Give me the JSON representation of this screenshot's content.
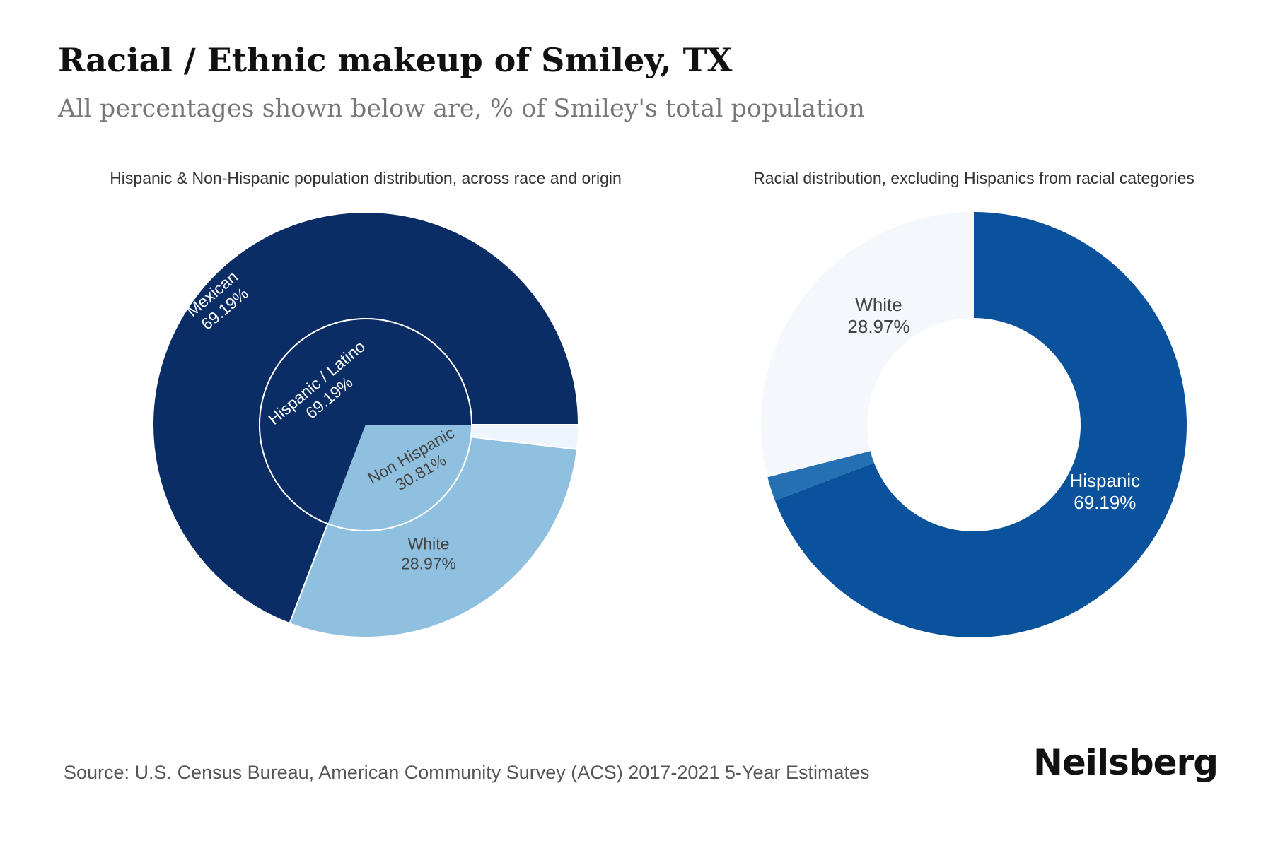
{
  "header": {
    "title": "Racial / Ethnic makeup of Smiley, TX",
    "subtitle": "All percentages shown below are, % of Smiley's total population"
  },
  "footer": {
    "source": "Source: U.S. Census Bureau, American Community Survey (ACS) 2017-2021 5-Year Estimates",
    "brand": "Neilsberg"
  },
  "colors": {
    "navy": "#0a2d66",
    "light_blue": "#8fc0df",
    "pale": "#eef5fc",
    "royal": "#0b529c",
    "mid_blue": "#2470b3",
    "very_pale": "#f4f8fd"
  },
  "chart_data": [
    {
      "type": "pie",
      "title": "Hispanic & Non-Hispanic population distribution, across race and origin",
      "inner": [
        {
          "label": "Hispanic / Latino",
          "value": 69.19,
          "value_label": "69.19%"
        },
        {
          "label": "Non Hispanic",
          "value": 30.81,
          "value_label": "30.81%"
        }
      ],
      "outer": [
        {
          "label": "Mexican",
          "value": 69.19,
          "value_label": "69.19%"
        },
        {
          "label": "White",
          "value": 28.97,
          "value_label": "28.97%"
        },
        {
          "label": "",
          "value": 1.84,
          "value_label": ""
        }
      ]
    },
    {
      "type": "pie",
      "title": "Racial distribution, excluding Hispanics from racial categories",
      "slices": [
        {
          "label": "Hispanic",
          "value": 69.19,
          "value_label": "69.19%"
        },
        {
          "label": "",
          "value": 1.84,
          "value_label": ""
        },
        {
          "label": "White",
          "value": 28.97,
          "value_label": "28.97%"
        }
      ]
    }
  ]
}
